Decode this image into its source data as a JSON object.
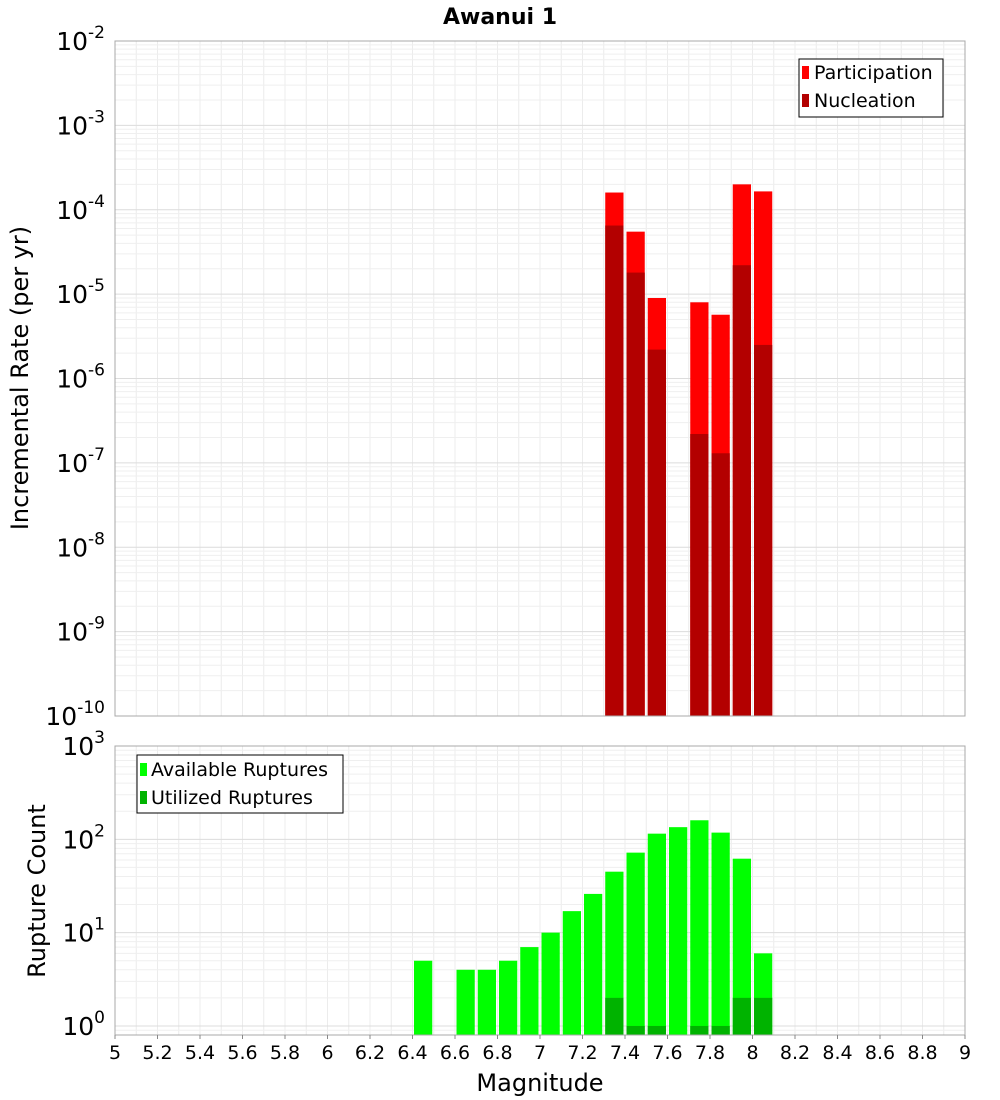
{
  "chart_data": [
    {
      "type": "bar",
      "title": "Awanui 1",
      "xlabel": "",
      "ylabel": "Incremental Rate (per yr)",
      "y_scale": "log",
      "ylim": [
        1e-10,
        0.01
      ],
      "xlim": [
        5,
        9
      ],
      "bin_width": 0.1,
      "grid": true,
      "legend_position": "top-right",
      "y_tick_labels": [
        {
          "base": "10",
          "exp": "-10",
          "value": 1e-10
        },
        {
          "base": "10",
          "exp": "-9",
          "value": 1e-09
        },
        {
          "base": "10",
          "exp": "-8",
          "value": 1e-08
        },
        {
          "base": "10",
          "exp": "-7",
          "value": 1e-07
        },
        {
          "base": "10",
          "exp": "-6",
          "value": 1e-06
        },
        {
          "base": "10",
          "exp": "-5",
          "value": 1e-05
        },
        {
          "base": "10",
          "exp": "-4",
          "value": 0.0001
        },
        {
          "base": "10",
          "exp": "-3",
          "value": 0.001
        },
        {
          "base": "10",
          "exp": "-2",
          "value": 0.01
        }
      ],
      "series": [
        {
          "name": "Participation",
          "color": "#ff0000",
          "x": [
            7.35,
            7.45,
            7.55,
            7.75,
            7.85,
            7.95,
            8.05
          ],
          "values": [
            0.00016,
            5.5e-05,
            9e-06,
            8e-06,
            5.7e-06,
            0.0002,
            0.000165
          ]
        },
        {
          "name": "Nucleation",
          "color": "#b30000",
          "x": [
            7.35,
            7.45,
            7.55,
            7.75,
            7.85,
            7.95,
            8.05
          ],
          "values": [
            6.5e-05,
            1.8e-05,
            2.2e-06,
            2.2e-07,
            1.3e-07,
            2.2e-05,
            2.5e-06
          ]
        }
      ]
    },
    {
      "type": "bar",
      "title": "",
      "xlabel": "Magnitude",
      "ylabel": "Rupture Count",
      "y_scale": "log",
      "ylim": [
        0.8,
        1000
      ],
      "xlim": [
        5,
        9
      ],
      "bin_width": 0.1,
      "grid": true,
      "legend_position": "top-left",
      "x_tick_labels": [
        "5",
        "5.2",
        "5.4",
        "5.6",
        "5.8",
        "6",
        "6.2",
        "6.4",
        "6.6",
        "6.8",
        "7",
        "7.2",
        "7.4",
        "7.6",
        "7.8",
        "8",
        "8.2",
        "8.4",
        "8.6",
        "8.8",
        "9"
      ],
      "x_tick_values": [
        5,
        5.2,
        5.4,
        5.6,
        5.8,
        6,
        6.2,
        6.4,
        6.6,
        6.8,
        7,
        7.2,
        7.4,
        7.6,
        7.8,
        8,
        8.2,
        8.4,
        8.6,
        8.8,
        9
      ],
      "y_tick_labels": [
        {
          "base": "10",
          "exp": "0",
          "value": 1
        },
        {
          "base": "10",
          "exp": "1",
          "value": 10
        },
        {
          "base": "10",
          "exp": "2",
          "value": 100
        },
        {
          "base": "10",
          "exp": "3",
          "value": 1000
        }
      ],
      "series": [
        {
          "name": "Available Ruptures",
          "color": "#00ff00",
          "x": [
            6.45,
            6.65,
            6.75,
            6.85,
            6.95,
            7.05,
            7.15,
            7.25,
            7.35,
            7.45,
            7.55,
            7.65,
            7.75,
            7.85,
            7.95,
            8.05
          ],
          "values": [
            5,
            4,
            4,
            5,
            7,
            10,
            17,
            26,
            45,
            72,
            115,
            135,
            160,
            118,
            62,
            6
          ]
        },
        {
          "name": "Utilized Ruptures",
          "color": "#00b300",
          "x": [
            7.35,
            7.45,
            7.55,
            7.75,
            7.85,
            7.95,
            8.05
          ],
          "values": [
            2,
            1,
            1,
            1,
            1,
            2,
            2
          ]
        }
      ]
    }
  ]
}
